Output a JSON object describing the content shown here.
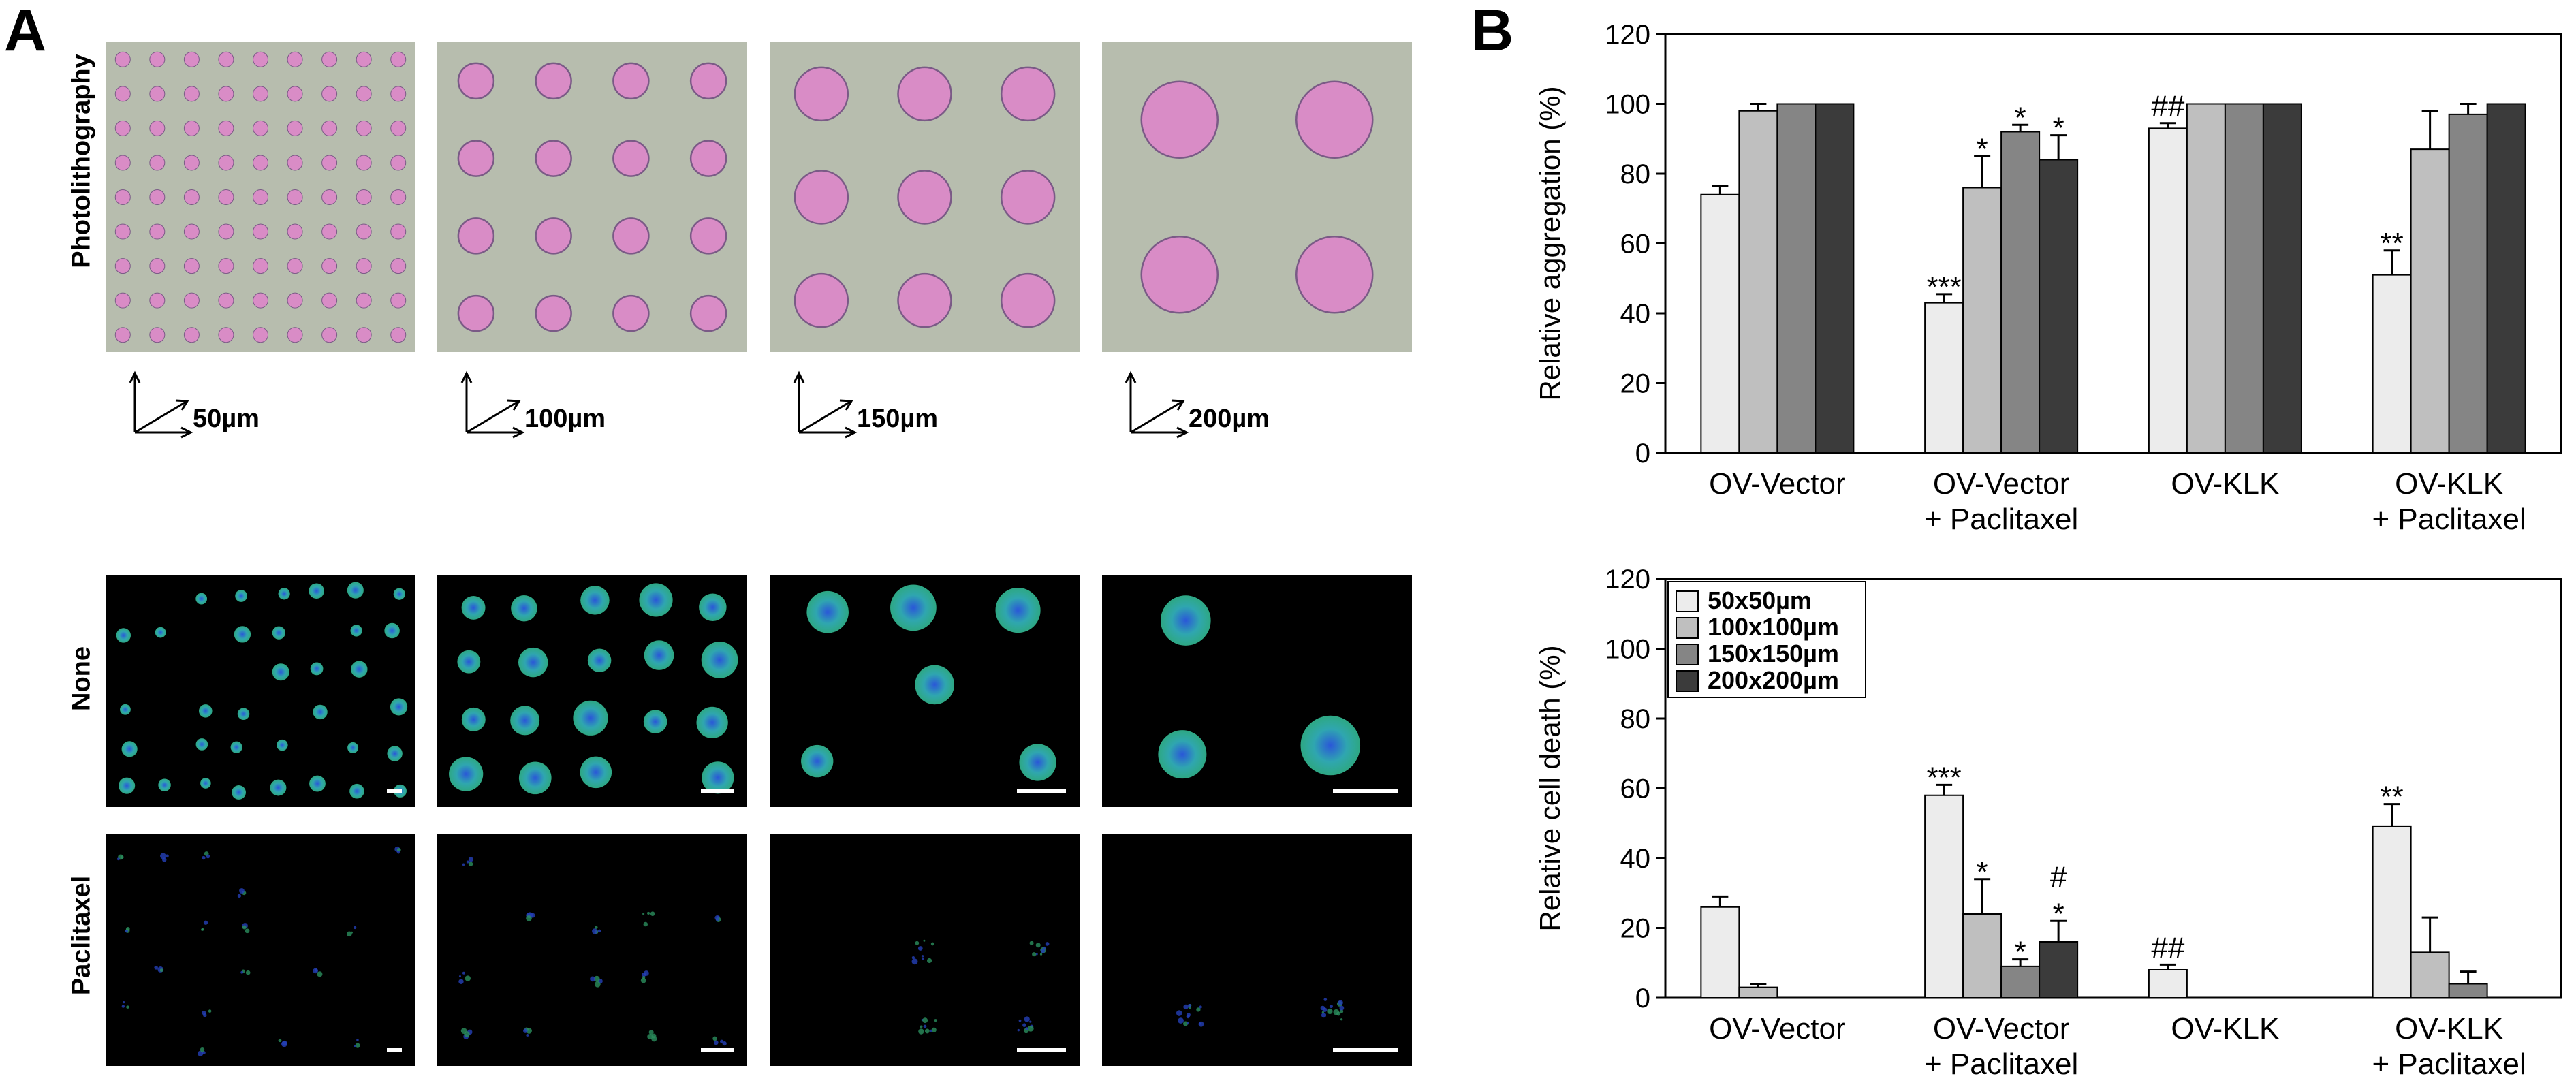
{
  "panel_a": {
    "letter": "A",
    "rows": {
      "photo": "Photolithography",
      "none": "None",
      "paclitaxel": "Paclitaxel"
    },
    "scale_labels": [
      "50µm",
      "100µm",
      "150µm",
      "200µm"
    ],
    "colors": {
      "photo_bg": "#b7bdae",
      "spot": "#d98cc6",
      "fluor_green": "#36c49a",
      "fluor_blue": "#2a57d8",
      "fluor_bg": "#000000"
    }
  },
  "panel_b": {
    "letter": "B",
    "legend": [
      "50x50µm",
      "100x100µm",
      "150x150µm",
      "200x200µm"
    ],
    "series_colors": [
      "#ececec",
      "#bfbfbf",
      "#858585",
      "#3b3b3b"
    ]
  },
  "chart_data": [
    {
      "type": "bar",
      "ylabel": "Relative aggregation (%)",
      "ylim": [
        0,
        120
      ],
      "yticks": [
        "0",
        "20",
        "40",
        "60",
        "80",
        "100",
        "120"
      ],
      "categories": [
        {
          "line1": "OV-Vector",
          "line2": ""
        },
        {
          "line1": "OV-Vector",
          "line2": "+ Paclitaxel"
        },
        {
          "line1": "OV-KLK",
          "line2": ""
        },
        {
          "line1": "OV-KLK",
          "line2": "+ Paclitaxel"
        }
      ],
      "series": [
        {
          "name": "50x50µm",
          "values": [
            74,
            43,
            93,
            51
          ],
          "errors": [
            2.5,
            2.5,
            1.5,
            7
          ]
        },
        {
          "name": "100x100µm",
          "values": [
            98,
            76,
            100,
            87
          ],
          "errors": [
            2,
            9,
            0,
            11
          ]
        },
        {
          "name": "150x150µm",
          "values": [
            100,
            92,
            100,
            97
          ],
          "errors": [
            0,
            2,
            0,
            3
          ]
        },
        {
          "name": "200x200µm",
          "values": [
            100,
            84,
            100,
            100
          ],
          "errors": [
            0,
            7,
            0,
            0
          ]
        }
      ],
      "annotations": [
        {
          "group": 1,
          "series": 0,
          "text": "***"
        },
        {
          "group": 1,
          "series": 1,
          "text": "*"
        },
        {
          "group": 1,
          "series": 2,
          "text": "*"
        },
        {
          "group": 1,
          "series": 3,
          "text": "*"
        },
        {
          "group": 2,
          "series": 0,
          "text": "##"
        },
        {
          "group": 3,
          "series": 0,
          "text": "**"
        }
      ],
      "legend": null
    },
    {
      "type": "bar",
      "ylabel": "Relative cell death (%)",
      "ylim": [
        0,
        120
      ],
      "yticks": [
        "0",
        "20",
        "40",
        "60",
        "80",
        "100",
        "120"
      ],
      "categories": [
        {
          "line1": "OV-Vector",
          "line2": ""
        },
        {
          "line1": "OV-Vector",
          "line2": "+ Paclitaxel"
        },
        {
          "line1": "OV-KLK",
          "line2": ""
        },
        {
          "line1": "OV-KLK",
          "line2": "+ Paclitaxel"
        }
      ],
      "series": [
        {
          "name": "50x50µm",
          "values": [
            26,
            58,
            8,
            49
          ],
          "errors": [
            3,
            3,
            1.5,
            6.5
          ]
        },
        {
          "name": "100x100µm",
          "values": [
            3,
            24,
            0,
            13
          ],
          "errors": [
            1,
            10,
            0,
            10
          ]
        },
        {
          "name": "150x150µm",
          "values": [
            0,
            9,
            0,
            4
          ],
          "errors": [
            0,
            2,
            0,
            3.5
          ]
        },
        {
          "name": "200x200µm",
          "values": [
            0,
            16,
            0,
            0
          ],
          "errors": [
            0,
            6,
            0,
            0
          ]
        }
      ],
      "annotations": [
        {
          "group": 1,
          "series": 0,
          "text": "***"
        },
        {
          "group": 1,
          "series": 1,
          "text": "*"
        },
        {
          "group": 1,
          "series": 2,
          "text": "*"
        },
        {
          "group": 1,
          "series": 3,
          "text": "*"
        },
        {
          "group": 1,
          "series": 3,
          "text": "#"
        },
        {
          "group": 2,
          "series": 0,
          "text": "##"
        },
        {
          "group": 3,
          "series": 0,
          "text": "**"
        }
      ],
      "legend": "top-left"
    }
  ]
}
